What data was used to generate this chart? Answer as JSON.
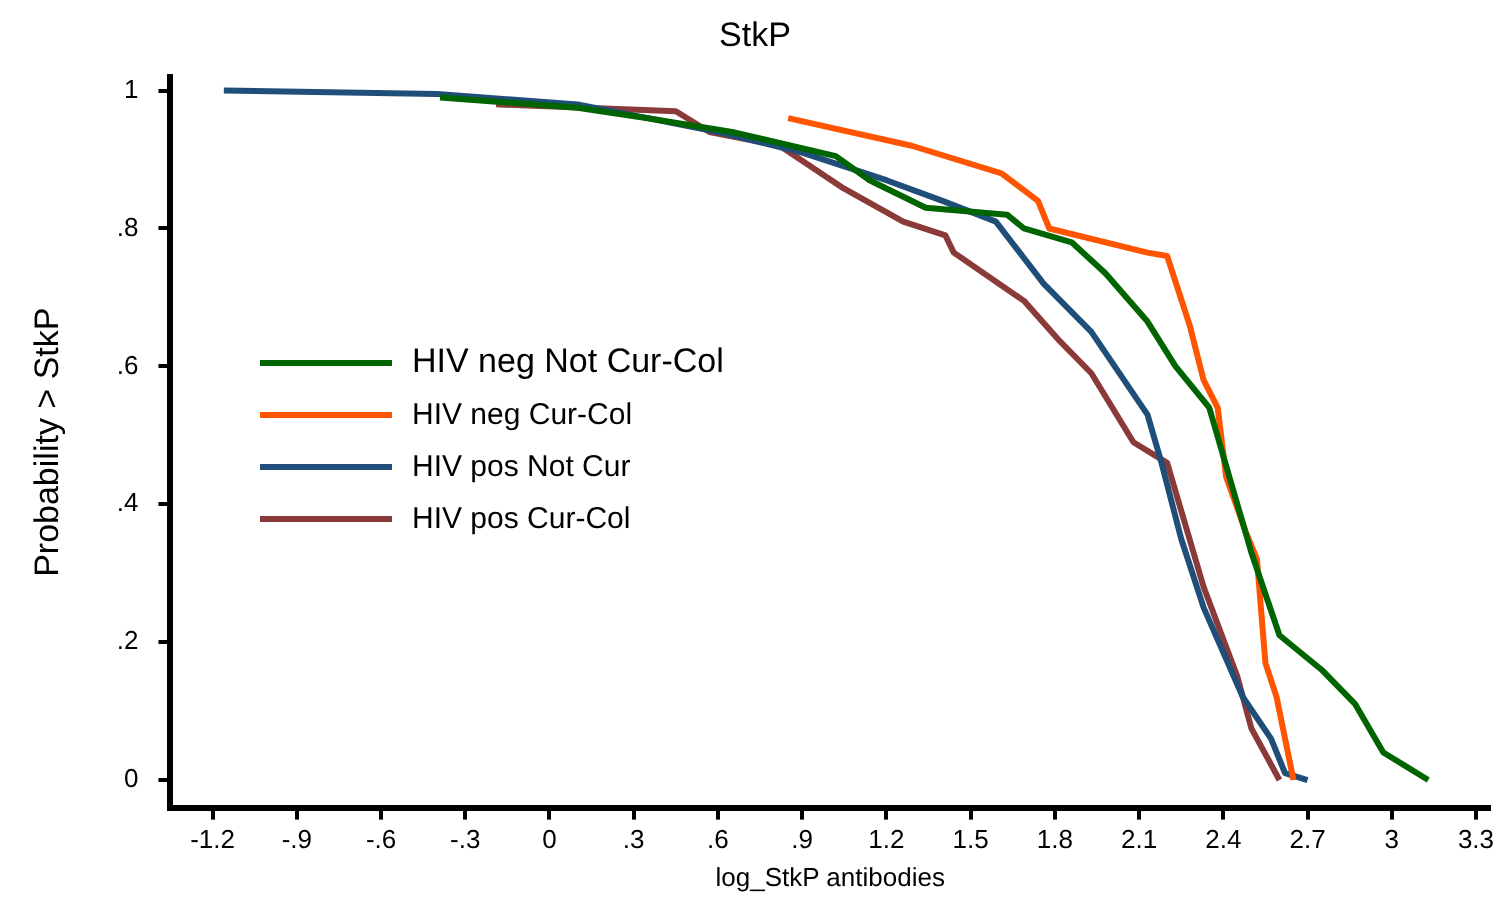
{
  "chart_data": {
    "type": "line",
    "title": "StkP",
    "xlabel": "log_StkP antibodies",
    "ylabel": "Probability > StkP",
    "xlim": [
      -1.35,
      3.35
    ],
    "ylim": [
      -0.04,
      1.02
    ],
    "xticks": [
      {
        "value": -1.2,
        "label": "-1.2"
      },
      {
        "value": -0.9,
        "label": "-.9"
      },
      {
        "value": -0.6,
        "label": "-.6"
      },
      {
        "value": -0.3,
        "label": "-.3"
      },
      0,
      {
        "value": 0.3,
        "label": ".3"
      },
      {
        "value": 0.6,
        "label": ".6"
      },
      {
        "value": 0.9,
        "label": ".9"
      },
      1.2,
      1.5,
      1.8,
      2.1,
      2.4,
      2.7,
      3,
      3.3
    ],
    "yticks": [
      0,
      {
        "value": 0.2,
        "label": ".2"
      },
      {
        "value": 0.4,
        "label": ".4"
      },
      {
        "value": 0.6,
        "label": ".6"
      },
      {
        "value": 0.8,
        "label": ".8"
      },
      1
    ],
    "grid": false,
    "legend": "left",
    "marker": "none",
    "line_style": "solid",
    "series": [
      {
        "name": "HIV neg Not Cur-Col",
        "color": "#006400",
        "x": [
          -0.39,
          0.1,
          0.35,
          0.65,
          1.02,
          1.14,
          1.34,
          1.63,
          1.69,
          1.86,
          1.98,
          2.13,
          2.23,
          2.35,
          2.5,
          2.6,
          2.75,
          2.87,
          2.97,
          3.13
        ],
        "values": [
          0.99,
          0.975,
          0.96,
          0.94,
          0.905,
          0.87,
          0.83,
          0.82,
          0.8,
          0.78,
          0.735,
          0.665,
          0.6,
          0.54,
          0.33,
          0.21,
          0.16,
          0.11,
          0.04,
          0.0
        ]
      },
      {
        "name": "HIV neg Cur-Col",
        "color": "#ff5500",
        "x": [
          0.85,
          1.29,
          1.61,
          1.74,
          1.78,
          2.13,
          2.2,
          2.28,
          2.33,
          2.38,
          2.41,
          2.48,
          2.52,
          2.55,
          2.59,
          2.65
        ],
        "values": [
          0.96,
          0.92,
          0.88,
          0.84,
          0.8,
          0.765,
          0.76,
          0.66,
          0.58,
          0.54,
          0.44,
          0.36,
          0.32,
          0.17,
          0.12,
          0.0
        ]
      },
      {
        "name": "HIV pos Not Cur",
        "color": "#1f4e79",
        "x": [
          -1.16,
          -0.4,
          0.1,
          0.35,
          0.6,
          0.9,
          1.2,
          1.4,
          1.59,
          1.76,
          1.93,
          2.13,
          2.18,
          2.25,
          2.33,
          2.47,
          2.57,
          2.62,
          2.7
        ],
        "values": [
          1.0,
          0.995,
          0.98,
          0.96,
          0.94,
          0.91,
          0.87,
          0.84,
          0.81,
          0.72,
          0.65,
          0.53,
          0.46,
          0.35,
          0.25,
          0.12,
          0.06,
          0.01,
          0.0
        ]
      },
      {
        "name": "HIV pos Cur-Col",
        "color": "#8b3a3a",
        "x": [
          -0.19,
          0.45,
          0.57,
          0.82,
          1.04,
          1.26,
          1.41,
          1.44,
          1.69,
          1.81,
          1.93,
          2.08,
          2.2,
          2.33,
          2.45,
          2.5,
          2.6
        ],
        "values": [
          0.98,
          0.97,
          0.94,
          0.92,
          0.86,
          0.81,
          0.79,
          0.765,
          0.695,
          0.64,
          0.59,
          0.49,
          0.46,
          0.28,
          0.15,
          0.075,
          0.0
        ]
      }
    ]
  }
}
